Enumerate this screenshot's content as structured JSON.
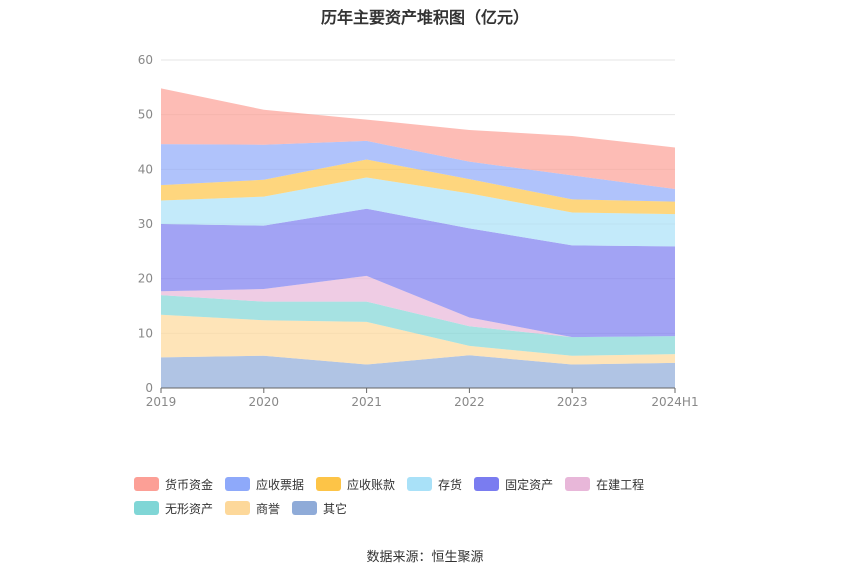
{
  "chart_data": {
    "type": "area",
    "stacked": true,
    "title": "历年主要资产堆积图（亿元）",
    "categories": [
      "2019",
      "2020",
      "2021",
      "2022",
      "2023",
      "2024H1"
    ],
    "ylim": [
      0,
      60
    ],
    "yticks": [
      0,
      10,
      20,
      30,
      40,
      50,
      60
    ],
    "grid": true,
    "legend_position": "bottom",
    "series": [
      {
        "name": "其它",
        "color": "#8fabd8",
        "values": [
          5.6,
          5.9,
          4.3,
          6.0,
          4.3,
          4.6
        ]
      },
      {
        "name": "商誉",
        "color": "#fdd89a",
        "values": [
          7.8,
          6.5,
          7.8,
          1.7,
          1.6,
          1.6
        ]
      },
      {
        "name": "无形资产",
        "color": "#80d6d6",
        "values": [
          3.6,
          3.4,
          3.7,
          3.6,
          3.4,
          3.3
        ]
      },
      {
        "name": "在建工程",
        "color": "#e8b7d9",
        "values": [
          0.7,
          2.3,
          4.7,
          1.6,
          0.0,
          0.0
        ]
      },
      {
        "name": "固定资产",
        "color": "#7a7cf0",
        "values": [
          12.3,
          11.6,
          12.3,
          16.3,
          16.8,
          16.4
        ]
      },
      {
        "name": "存货",
        "color": "#a9e1f8",
        "values": [
          4.3,
          5.3,
          5.7,
          6.4,
          6.0,
          5.9
        ]
      },
      {
        "name": "应收账款",
        "color": "#fdc447",
        "values": [
          2.8,
          3.1,
          3.3,
          2.6,
          2.4,
          2.3
        ]
      },
      {
        "name": "应收票据",
        "color": "#8ea9fa",
        "values": [
          7.5,
          6.4,
          3.4,
          3.2,
          4.4,
          2.3
        ]
      },
      {
        "name": "货币资金",
        "color": "#fc9f96",
        "values": [
          10.2,
          6.4,
          3.9,
          5.8,
          7.2,
          7.6
        ]
      }
    ]
  },
  "legend_order": [
    "货币资金",
    "应收票据",
    "应收账款",
    "存货",
    "固定资产",
    "在建工程",
    "无形资产",
    "商誉",
    "其它"
  ],
  "source": "数据来源：恒生聚源"
}
